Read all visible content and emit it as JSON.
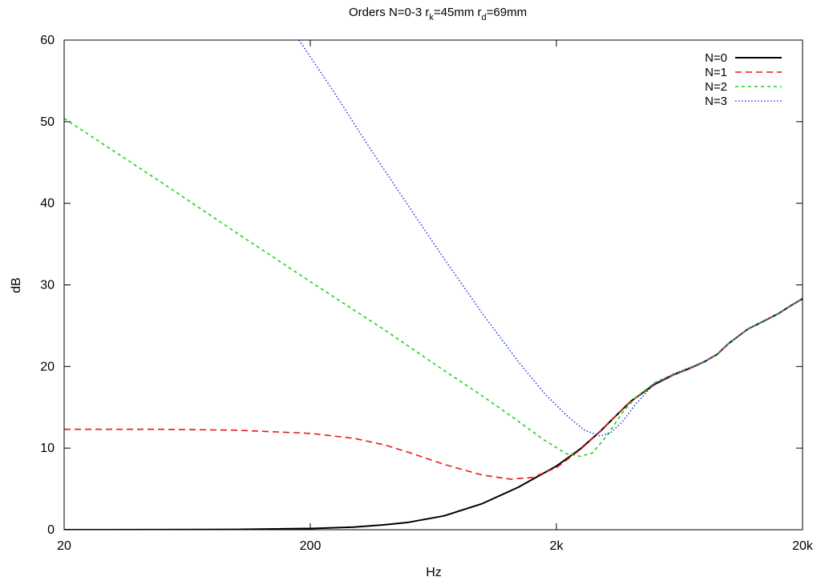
{
  "chart_data": {
    "type": "line",
    "title": {
      "prefix": "Orders N=0-3 r",
      "sub1": "k",
      "middle": "=45mm r",
      "sub2": "d",
      "suffix": "=69mm"
    },
    "xlabel": "Hz",
    "ylabel": "dB",
    "xscale": "log",
    "xlim": [
      20,
      20000
    ],
    "ylim": [
      0,
      60
    ],
    "x_ticks": [
      {
        "value": 20,
        "label": "20"
      },
      {
        "value": 200,
        "label": "200"
      },
      {
        "value": 2000,
        "label": "2k"
      },
      {
        "value": 20000,
        "label": "20k"
      }
    ],
    "y_ticks": [
      {
        "value": 0,
        "label": "0"
      },
      {
        "value": 10,
        "label": "10"
      },
      {
        "value": 20,
        "label": "20"
      },
      {
        "value": 30,
        "label": "30"
      },
      {
        "value": 40,
        "label": "40"
      },
      {
        "value": 50,
        "label": "50"
      },
      {
        "value": 60,
        "label": "60"
      }
    ],
    "grid": false,
    "legend_position": "top-right",
    "series": [
      {
        "name": "N=0",
        "color": "#000000",
        "dash": "solid",
        "points": [
          [
            20,
            0
          ],
          [
            50,
            0.01
          ],
          [
            100,
            0.04
          ],
          [
            200,
            0.15
          ],
          [
            300,
            0.32
          ],
          [
            400,
            0.6
          ],
          [
            500,
            0.9
          ],
          [
            700,
            1.7
          ],
          [
            1000,
            3.2
          ],
          [
            1400,
            5.2
          ],
          [
            2000,
            7.8
          ],
          [
            2500,
            9.9
          ],
          [
            3000,
            12.0
          ],
          [
            3500,
            14.0
          ],
          [
            4000,
            15.7
          ],
          [
            5000,
            17.8
          ],
          [
            6000,
            19.0
          ],
          [
            7000,
            19.8
          ],
          [
            8000,
            20.6
          ],
          [
            9000,
            21.5
          ],
          [
            10000,
            22.8
          ],
          [
            12000,
            24.6
          ],
          [
            14000,
            25.6
          ],
          [
            16000,
            26.5
          ],
          [
            18000,
            27.5
          ],
          [
            20000,
            28.3
          ]
        ]
      },
      {
        "name": "N=1",
        "color": "#e41a1c",
        "dash": "8,5",
        "points": [
          [
            20,
            12.3
          ],
          [
            50,
            12.3
          ],
          [
            100,
            12.2
          ],
          [
            200,
            11.8
          ],
          [
            300,
            11.2
          ],
          [
            400,
            10.4
          ],
          [
            500,
            9.5
          ],
          [
            700,
            8.0
          ],
          [
            1000,
            6.7
          ],
          [
            1300,
            6.2
          ],
          [
            1600,
            6.4
          ],
          [
            2000,
            7.6
          ],
          [
            2500,
            9.8
          ],
          [
            3000,
            12.0
          ],
          [
            3500,
            14.0
          ],
          [
            4000,
            15.7
          ],
          [
            5000,
            17.9
          ],
          [
            6000,
            19.0
          ],
          [
            7000,
            19.8
          ],
          [
            8000,
            20.6
          ],
          [
            9000,
            21.5
          ],
          [
            10000,
            22.8
          ],
          [
            12000,
            24.6
          ],
          [
            14000,
            25.6
          ],
          [
            16000,
            26.5
          ],
          [
            18000,
            27.5
          ],
          [
            20000,
            28.3
          ]
        ]
      },
      {
        "name": "N=2",
        "color": "#1fd01f",
        "dash": "4,4",
        "points": [
          [
            20,
            50.4
          ],
          [
            50,
            42.5
          ],
          [
            100,
            36.4
          ],
          [
            200,
            30.4
          ],
          [
            400,
            24.5
          ],
          [
            700,
            19.5
          ],
          [
            1000,
            16.4
          ],
          [
            1400,
            13.3
          ],
          [
            1800,
            10.9
          ],
          [
            2200,
            9.3
          ],
          [
            2500,
            9.0
          ],
          [
            2800,
            9.4
          ],
          [
            3200,
            11.5
          ],
          [
            3700,
            14.3
          ],
          [
            4200,
            16.2
          ],
          [
            5000,
            18.0
          ],
          [
            6000,
            19.1
          ],
          [
            7000,
            19.9
          ],
          [
            8000,
            20.6
          ],
          [
            9000,
            21.5
          ],
          [
            10000,
            22.8
          ],
          [
            12000,
            24.6
          ],
          [
            14000,
            25.6
          ],
          [
            16000,
            26.5
          ],
          [
            18000,
            27.5
          ],
          [
            20000,
            28.3
          ]
        ]
      },
      {
        "name": "N=3",
        "color": "#2a3fd6",
        "dash": "1.5,2.5",
        "points": [
          [
            180,
            60
          ],
          [
            250,
            53.6
          ],
          [
            350,
            46.7
          ],
          [
            500,
            39.7
          ],
          [
            700,
            33.2
          ],
          [
            1000,
            26.5
          ],
          [
            1400,
            20.6
          ],
          [
            1800,
            16.6
          ],
          [
            2200,
            14.0
          ],
          [
            2600,
            12.2
          ],
          [
            3000,
            11.5
          ],
          [
            3300,
            11.8
          ],
          [
            3700,
            13.2
          ],
          [
            4200,
            15.4
          ],
          [
            5000,
            17.9
          ],
          [
            6000,
            19.1
          ],
          [
            7000,
            19.9
          ],
          [
            8000,
            20.6
          ],
          [
            9000,
            21.5
          ],
          [
            10000,
            22.8
          ],
          [
            12000,
            24.6
          ],
          [
            14000,
            25.6
          ],
          [
            16000,
            26.5
          ],
          [
            18000,
            27.5
          ],
          [
            20000,
            28.3
          ]
        ]
      }
    ]
  }
}
